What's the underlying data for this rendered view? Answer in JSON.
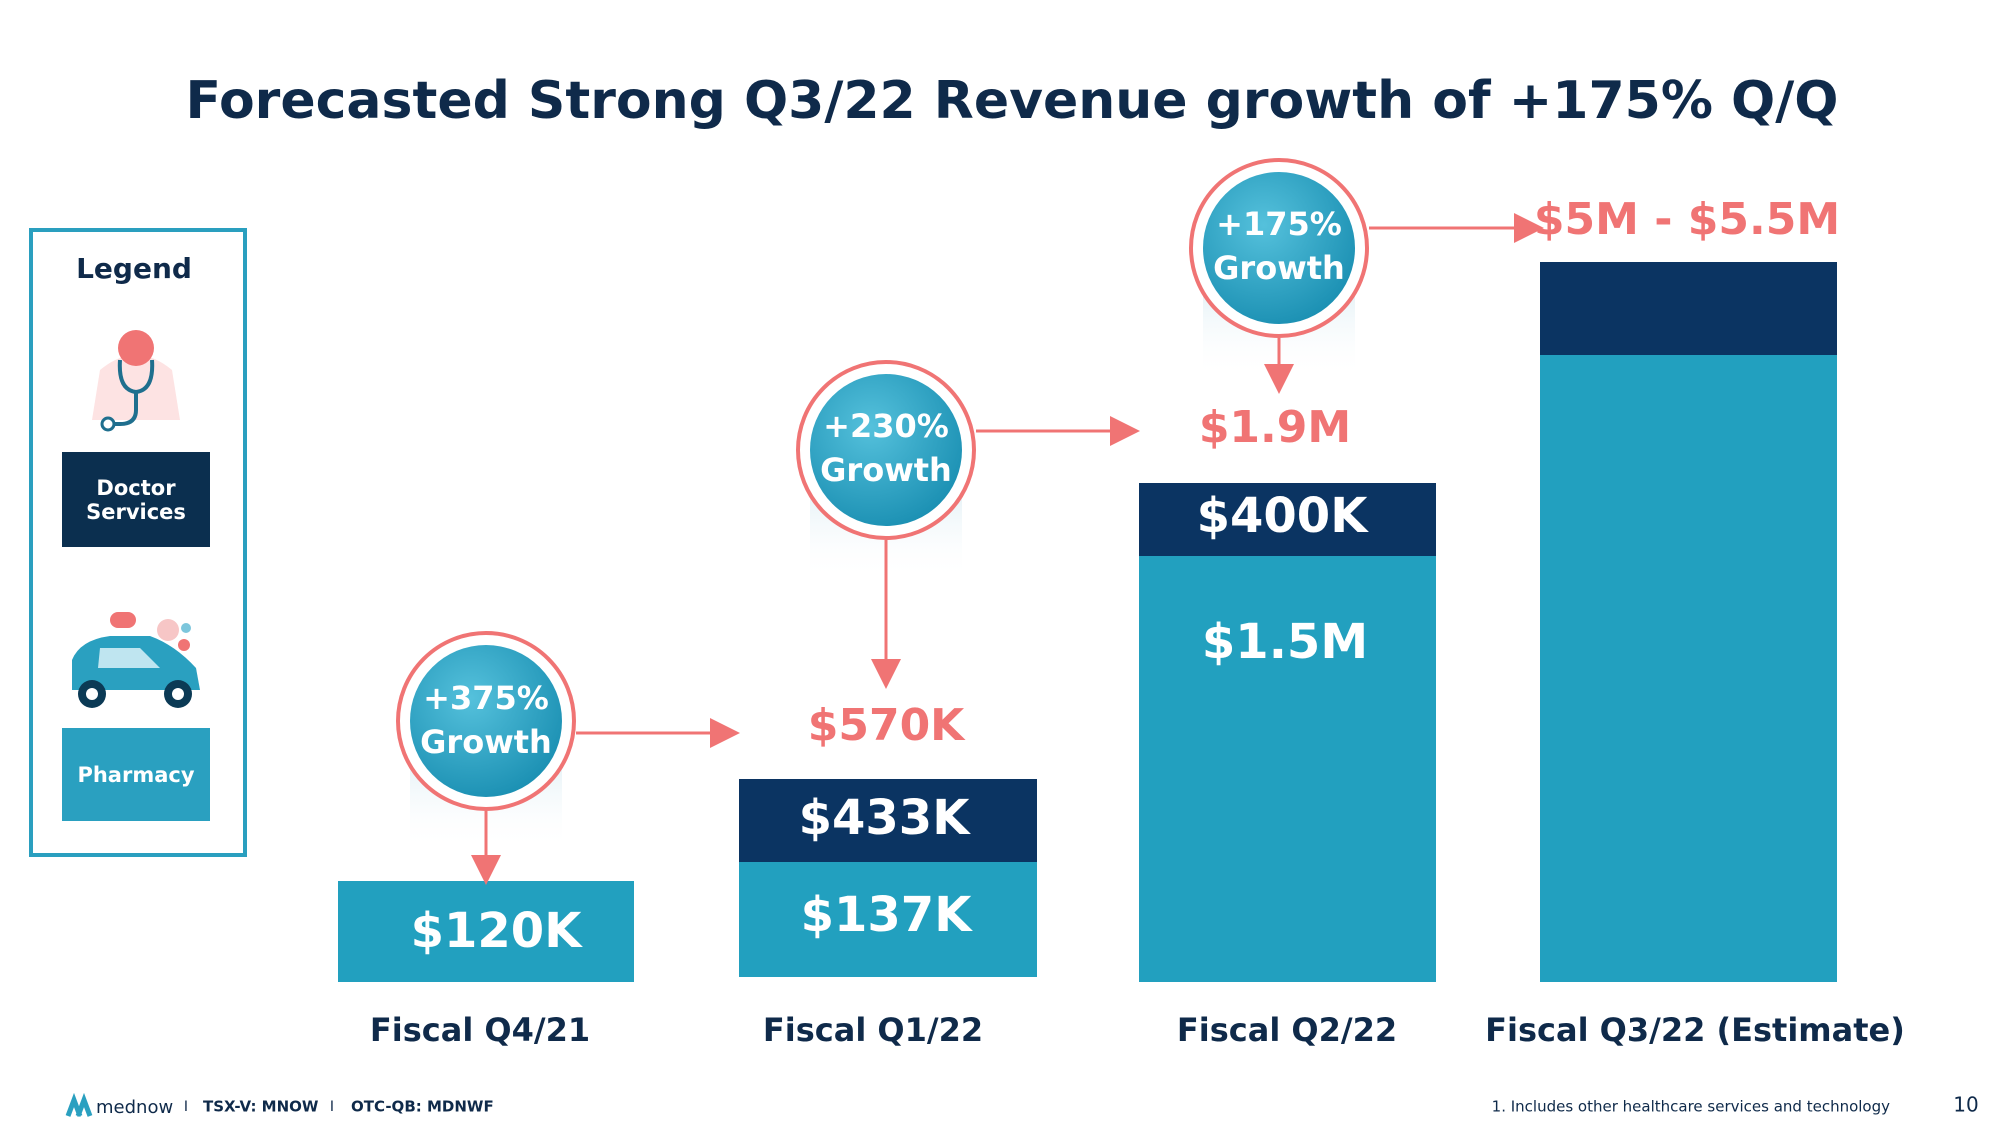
{
  "title": "Forecasted Strong Q3/22 Revenue growth of +175% Q/Q",
  "legend": {
    "title": "Legend",
    "items": [
      {
        "label": "Doctor Services"
      },
      {
        "label": "Pharmacy"
      }
    ]
  },
  "bars": [
    {
      "category": "Fiscal Q4/21",
      "segments": [
        {
          "label": "$120K"
        }
      ]
    },
    {
      "category": "Fiscal Q1/22",
      "total": "$570K",
      "segments": [
        {
          "label": "$137K"
        },
        {
          "label": "$433K"
        }
      ]
    },
    {
      "category": "Fiscal Q2/22",
      "total": "$1.9M",
      "segments": [
        {
          "label": "$1.5M"
        },
        {
          "label": "$400K"
        }
      ]
    },
    {
      "category": "Fiscal Q3/22 (Estimate)",
      "total": "$5M - $5.5M"
    }
  ],
  "growth": [
    {
      "pct": "+375%",
      "word": "Growth"
    },
    {
      "pct": "+230%",
      "word": "Growth"
    },
    {
      "pct": "+175%",
      "word": "Growth"
    }
  ],
  "footer": {
    "brand": "mednow",
    "sep1": "I",
    "ticker1": "TSX-V: MNOW",
    "sep2": "I",
    "ticker2": "OTC-QB: MDNWF",
    "footnote": "1. Includes other healthcare services and technology",
    "page": "10"
  }
}
